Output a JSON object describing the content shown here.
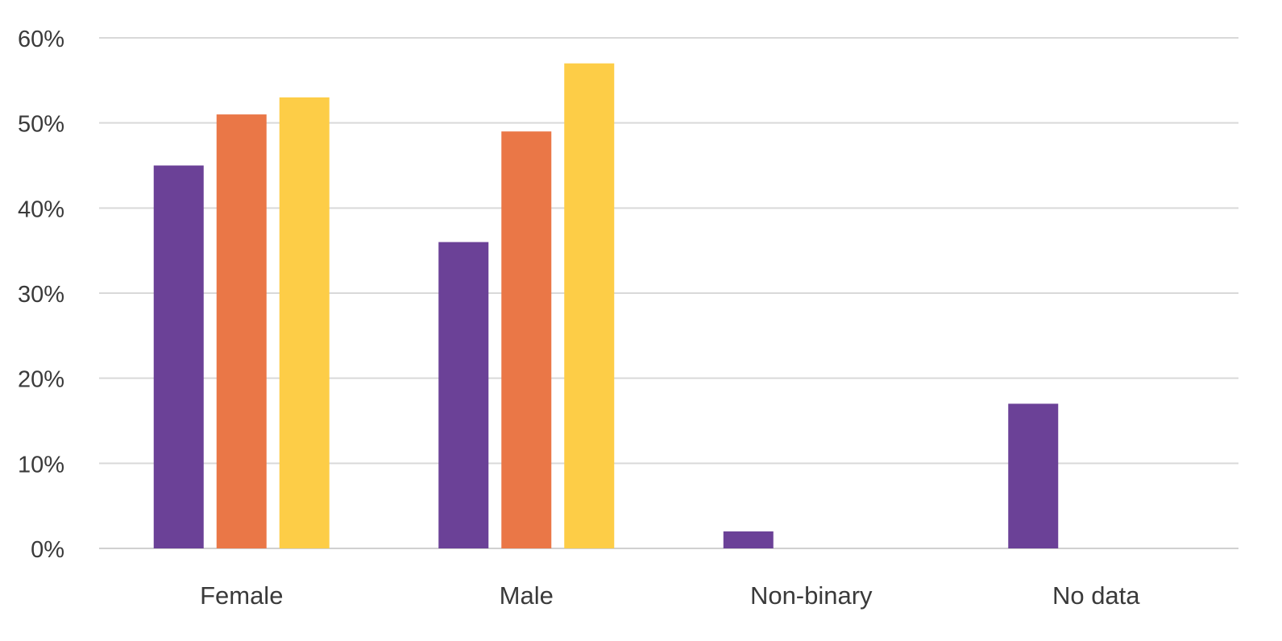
{
  "chart_data": {
    "type": "bar",
    "title": "",
    "xlabel": "",
    "ylabel": "",
    "categories": [
      "Female",
      "Male",
      "Non-binary",
      "No data"
    ],
    "ylim": [
      0,
      60
    ],
    "yticks": [
      "0%",
      "10%",
      "20%",
      "30%",
      "40%",
      "50%",
      "60%"
    ],
    "grid": true,
    "legend": "none",
    "series": [
      {
        "color": "#6b4197",
        "values": [
          45,
          36,
          2,
          17
        ]
      },
      {
        "color": "#ea7747",
        "values": [
          51,
          49,
          null,
          null
        ]
      },
      {
        "color": "#fdcd47",
        "values": [
          53,
          57,
          null,
          null
        ]
      }
    ]
  }
}
